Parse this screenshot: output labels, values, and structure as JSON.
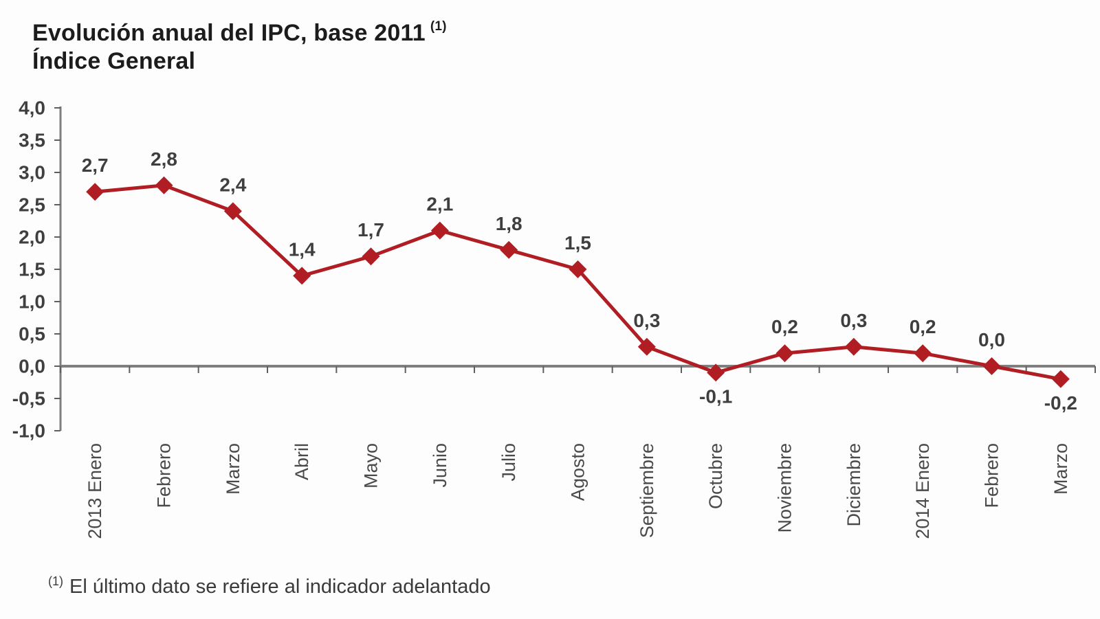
{
  "title": {
    "line1": "Evolución anual del IPC, base 2011",
    "line1_superscript": "(1)",
    "line2": "Índice General"
  },
  "footnote": {
    "superscript": "(1)",
    "text": "El último dato se refiere al indicador adelantado"
  },
  "chart_data": {
    "type": "line",
    "series_name": "Índice General",
    "categories": [
      "2013 Enero",
      "Febrero",
      "Marzo",
      "Abril",
      "Mayo",
      "Junio",
      "Julio",
      "Agosto",
      "Septiembre",
      "Octubre",
      "Noviembre",
      "Diciembre",
      "2014 Enero",
      "Febrero",
      "Marzo"
    ],
    "values": [
      2.7,
      2.8,
      2.4,
      1.4,
      1.7,
      2.1,
      1.8,
      1.5,
      0.3,
      -0.1,
      0.2,
      0.3,
      0.2,
      0.0,
      -0.2
    ],
    "point_labels": [
      "2,7",
      "2,8",
      "2,4",
      "1,4",
      "1,7",
      "2,1",
      "1,8",
      "1,5",
      "0,3",
      "-0,1",
      "0,2",
      "0,3",
      "0,2",
      "0,0",
      "-0,2"
    ],
    "y_ticks": [
      {
        "label": "4,0",
        "value": 4.0
      },
      {
        "label": "3,5",
        "value": 3.5
      },
      {
        "label": "3,0",
        "value": 3.0
      },
      {
        "label": "2,5",
        "value": 2.5
      },
      {
        "label": "2,0",
        "value": 2.0
      },
      {
        "label": "1,5",
        "value": 1.5
      },
      {
        "label": "1,0",
        "value": 1.0
      },
      {
        "label": "0,5",
        "value": 0.5
      },
      {
        "label": "0,0",
        "value": 0.0
      },
      {
        "label": "-0,5",
        "value": -0.5
      },
      {
        "label": "-1,0",
        "value": -1.0
      }
    ],
    "ylim": [
      -1.0,
      4.0
    ],
    "xlabel": "",
    "ylabel": "",
    "grid": "off",
    "legend": "none",
    "marker": "diamond",
    "line_color": "#b01e24",
    "axis_color": "#7f7f7f",
    "tick_color": "#5f5f5f",
    "label_color": "#3f3f3f"
  }
}
